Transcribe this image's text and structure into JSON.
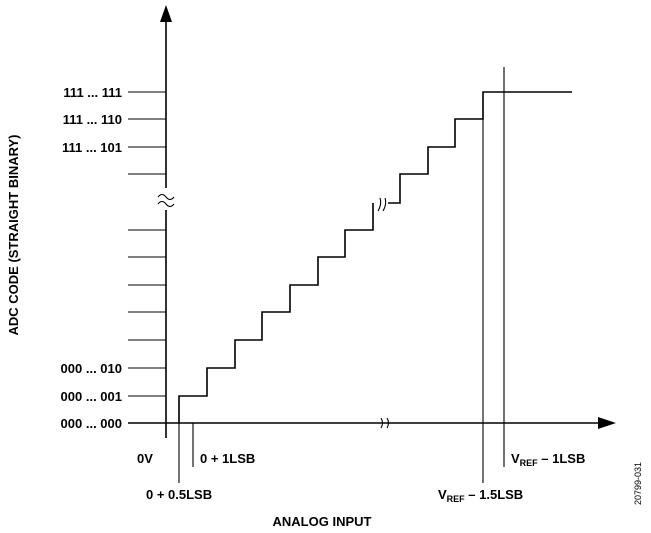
{
  "diagram": {
    "y_axis_title": "ADC CODE (STRAIGHT BINARY)",
    "x_axis_title": "ANALOG INPUT",
    "y_codes": {
      "top": "111 ... 111",
      "second": "111 ... 110",
      "third": "111 ... 101",
      "c2": "000 ... 010",
      "c1": "000 ... 001",
      "c0": "000 ... 000"
    },
    "x_labels": {
      "zero": "0V",
      "half_lsb": "0 + 0.5LSB",
      "one_lsb": "0 + 1LSB",
      "vref_main": "V",
      "vref_sub": "REF",
      "vref_minus_1_5": " – 1.5LSB",
      "vref_minus_1": " – 1LSB"
    },
    "figure_id": "20799-031"
  }
}
